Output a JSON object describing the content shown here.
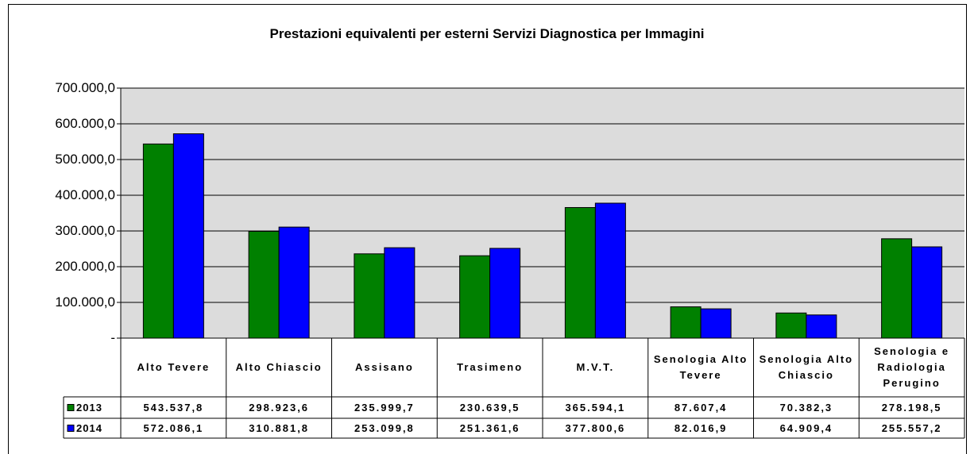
{
  "chart_data": {
    "type": "bar",
    "title": "Prestazioni equivalenti per esterni Servizi Diagnostica per Immagini",
    "categories": [
      "Alto Tevere",
      "Alto Chiascio",
      "Assisano",
      "Trasimeno",
      "M.V.T.",
      "Senologia Alto Tevere",
      "Senologia Alto Chiascio",
      "Senologia e Radiologia Perugino"
    ],
    "series": [
      {
        "name": "2013",
        "color": "#008000",
        "values": [
          543537.8,
          298923.6,
          235999.7,
          230639.5,
          365594.1,
          87607.4,
          70382.3,
          278198.5
        ],
        "value_labels": [
          "543.537,8",
          "298.923,6",
          "235.999,7",
          "230.639,5",
          "365.594,1",
          "87.607,4",
          "70.382,3",
          "278.198,5"
        ]
      },
      {
        "name": "2014",
        "color": "#0000ff",
        "values": [
          572086.1,
          310881.8,
          253099.8,
          251361.6,
          377800.6,
          82016.9,
          64909.4,
          255557.2
        ],
        "value_labels": [
          "572.086,1",
          "310.881,8",
          "253.099,8",
          "251.361,6",
          "377.800,6",
          "82.016,9",
          "64.909,4",
          "255.557,2"
        ]
      }
    ],
    "ylim": [
      0,
      700000
    ],
    "yticks": [
      {
        "value": 0,
        "label": "-"
      },
      {
        "value": 100000,
        "label": "100.000,0"
      },
      {
        "value": 200000,
        "label": "200.000,0"
      },
      {
        "value": 300000,
        "label": "300.000,0"
      },
      {
        "value": 400000,
        "label": "400.000,0"
      },
      {
        "value": 500000,
        "label": "500.000,0"
      },
      {
        "value": 600000,
        "label": "600.000,0"
      },
      {
        "value": 700000,
        "label": "700.000,0"
      }
    ],
    "grid": true
  }
}
